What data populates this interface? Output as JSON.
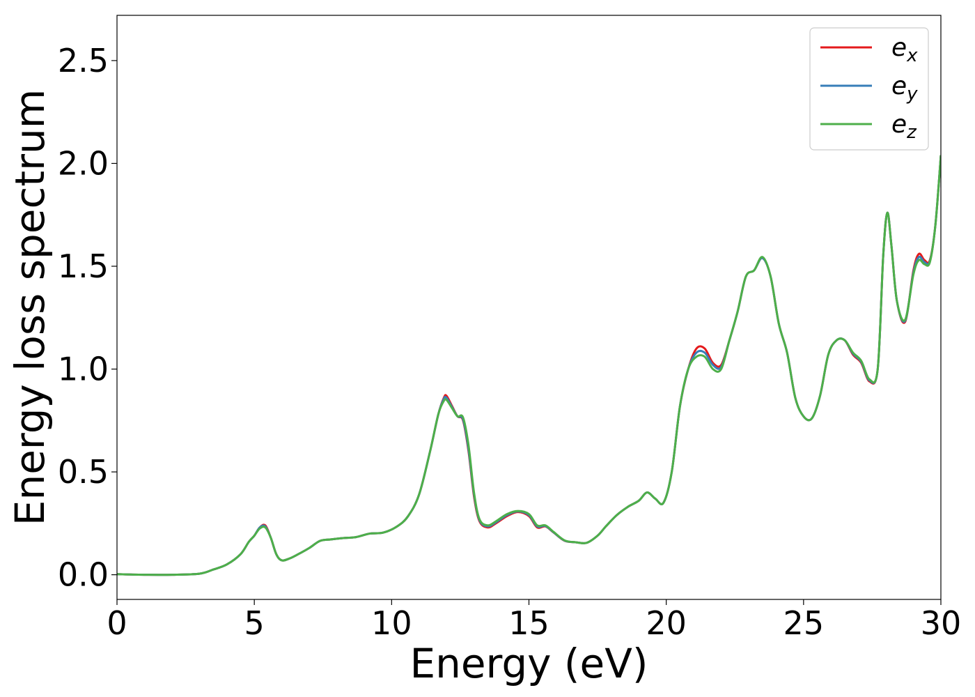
{
  "chart_data": {
    "type": "line",
    "xlabel": "Energy (eV)",
    "ylabel": "Energy loss spectrum",
    "xlim": [
      0,
      30
    ],
    "ylim": [
      -0.12,
      2.72
    ],
    "xticks": [
      0,
      5,
      10,
      15,
      20,
      25,
      30
    ],
    "xtick_labels": [
      "0",
      "5",
      "10",
      "15",
      "20",
      "25",
      "30"
    ],
    "yticks": [
      0.0,
      0.5,
      1.0,
      1.5,
      2.0,
      2.5
    ],
    "ytick_labels": [
      "0.0",
      "0.5",
      "1.0",
      "1.5",
      "2.0",
      "2.5"
    ],
    "grid": false,
    "legend_position": "top-right",
    "x": [
      0,
      0.5,
      1,
      2,
      3,
      3.5,
      4,
      4.5,
      4.8,
      5.0,
      5.2,
      5.4,
      5.6,
      5.8,
      6.0,
      6.3,
      6.6,
      7.0,
      7.4,
      7.8,
      8.2,
      8.7,
      9.2,
      9.7,
      10.2,
      10.6,
      11.0,
      11.4,
      11.7,
      11.9,
      12.0,
      12.2,
      12.4,
      12.6,
      12.8,
      13.0,
      13.2,
      13.5,
      13.8,
      14.2,
      14.6,
      15.0,
      15.3,
      15.6,
      15.9,
      16.3,
      16.7,
      17.1,
      17.5,
      17.8,
      18.2,
      18.6,
      19.0,
      19.3,
      19.6,
      19.9,
      20.2,
      20.5,
      20.8,
      21.1,
      21.4,
      21.7,
      22.0,
      22.3,
      22.6,
      22.9,
      23.2,
      23.5,
      23.8,
      24.1,
      24.4,
      24.7,
      25.0,
      25.3,
      25.6,
      25.9,
      26.2,
      26.5,
      26.8,
      27.1,
      27.4,
      27.7,
      27.9,
      28.05,
      28.2,
      28.4,
      28.7,
      29.0,
      29.2,
      29.4,
      29.6,
      29.8,
      30.0
    ],
    "series": [
      {
        "name": "e_x",
        "color": "#e41a1c",
        "values": [
          0.003,
          0.001,
          0.0,
          0.0,
          0.005,
          0.025,
          0.05,
          0.1,
          0.16,
          0.19,
          0.23,
          0.24,
          0.18,
          0.1,
          0.07,
          0.08,
          0.1,
          0.13,
          0.165,
          0.172,
          0.178,
          0.183,
          0.2,
          0.205,
          0.235,
          0.285,
          0.39,
          0.6,
          0.78,
          0.86,
          0.87,
          0.82,
          0.77,
          0.75,
          0.6,
          0.38,
          0.26,
          0.23,
          0.25,
          0.285,
          0.305,
          0.285,
          0.23,
          0.235,
          0.205,
          0.165,
          0.158,
          0.155,
          0.19,
          0.235,
          0.29,
          0.33,
          0.36,
          0.4,
          0.37,
          0.35,
          0.5,
          0.82,
          1.0,
          1.1,
          1.1,
          1.03,
          1.02,
          1.14,
          1.28,
          1.45,
          1.48,
          1.54,
          1.45,
          1.22,
          1.08,
          0.86,
          0.77,
          0.76,
          0.87,
          1.07,
          1.14,
          1.14,
          1.07,
          1.03,
          0.94,
          1.0,
          1.55,
          1.76,
          1.6,
          1.33,
          1.23,
          1.48,
          1.56,
          1.53,
          1.53,
          1.7,
          2.04
        ]
      },
      {
        "name": "e_y",
        "color": "#377eb8",
        "values": [
          0.003,
          0.001,
          0.0,
          0.0,
          0.005,
          0.025,
          0.05,
          0.1,
          0.16,
          0.19,
          0.23,
          0.235,
          0.18,
          0.1,
          0.07,
          0.08,
          0.1,
          0.13,
          0.165,
          0.172,
          0.178,
          0.183,
          0.2,
          0.205,
          0.235,
          0.285,
          0.39,
          0.6,
          0.78,
          0.855,
          0.86,
          0.815,
          0.77,
          0.755,
          0.61,
          0.39,
          0.265,
          0.235,
          0.255,
          0.29,
          0.308,
          0.29,
          0.235,
          0.237,
          0.206,
          0.166,
          0.158,
          0.155,
          0.19,
          0.235,
          0.29,
          0.33,
          0.36,
          0.4,
          0.37,
          0.35,
          0.5,
          0.82,
          1.0,
          1.08,
          1.08,
          1.02,
          1.01,
          1.14,
          1.28,
          1.45,
          1.48,
          1.54,
          1.45,
          1.22,
          1.08,
          0.86,
          0.77,
          0.76,
          0.87,
          1.07,
          1.14,
          1.14,
          1.075,
          1.035,
          0.945,
          1.0,
          1.55,
          1.76,
          1.6,
          1.33,
          1.235,
          1.47,
          1.545,
          1.52,
          1.525,
          1.7,
          2.04
        ]
      },
      {
        "name": "e_z",
        "color": "#4daf4a",
        "values": [
          0.003,
          0.001,
          0.0,
          0.0,
          0.005,
          0.025,
          0.05,
          0.1,
          0.16,
          0.19,
          0.225,
          0.23,
          0.18,
          0.1,
          0.07,
          0.08,
          0.1,
          0.13,
          0.165,
          0.172,
          0.178,
          0.183,
          0.2,
          0.205,
          0.235,
          0.285,
          0.39,
          0.6,
          0.78,
          0.845,
          0.85,
          0.81,
          0.77,
          0.765,
          0.63,
          0.4,
          0.27,
          0.24,
          0.26,
          0.295,
          0.31,
          0.295,
          0.24,
          0.24,
          0.208,
          0.167,
          0.158,
          0.155,
          0.19,
          0.235,
          0.29,
          0.33,
          0.36,
          0.4,
          0.37,
          0.35,
          0.5,
          0.82,
          1.0,
          1.06,
          1.06,
          1.0,
          1.0,
          1.14,
          1.28,
          1.45,
          1.48,
          1.545,
          1.45,
          1.22,
          1.08,
          0.86,
          0.77,
          0.76,
          0.87,
          1.07,
          1.14,
          1.14,
          1.08,
          1.04,
          0.95,
          1.0,
          1.55,
          1.76,
          1.6,
          1.33,
          1.24,
          1.46,
          1.53,
          1.51,
          1.52,
          1.7,
          2.04
        ]
      }
    ],
    "legend": [
      {
        "base": "e",
        "sub": "x",
        "color": "#e41a1c"
      },
      {
        "base": "e",
        "sub": "y",
        "color": "#377eb8"
      },
      {
        "base": "e",
        "sub": "z",
        "color": "#4daf4a"
      }
    ]
  }
}
